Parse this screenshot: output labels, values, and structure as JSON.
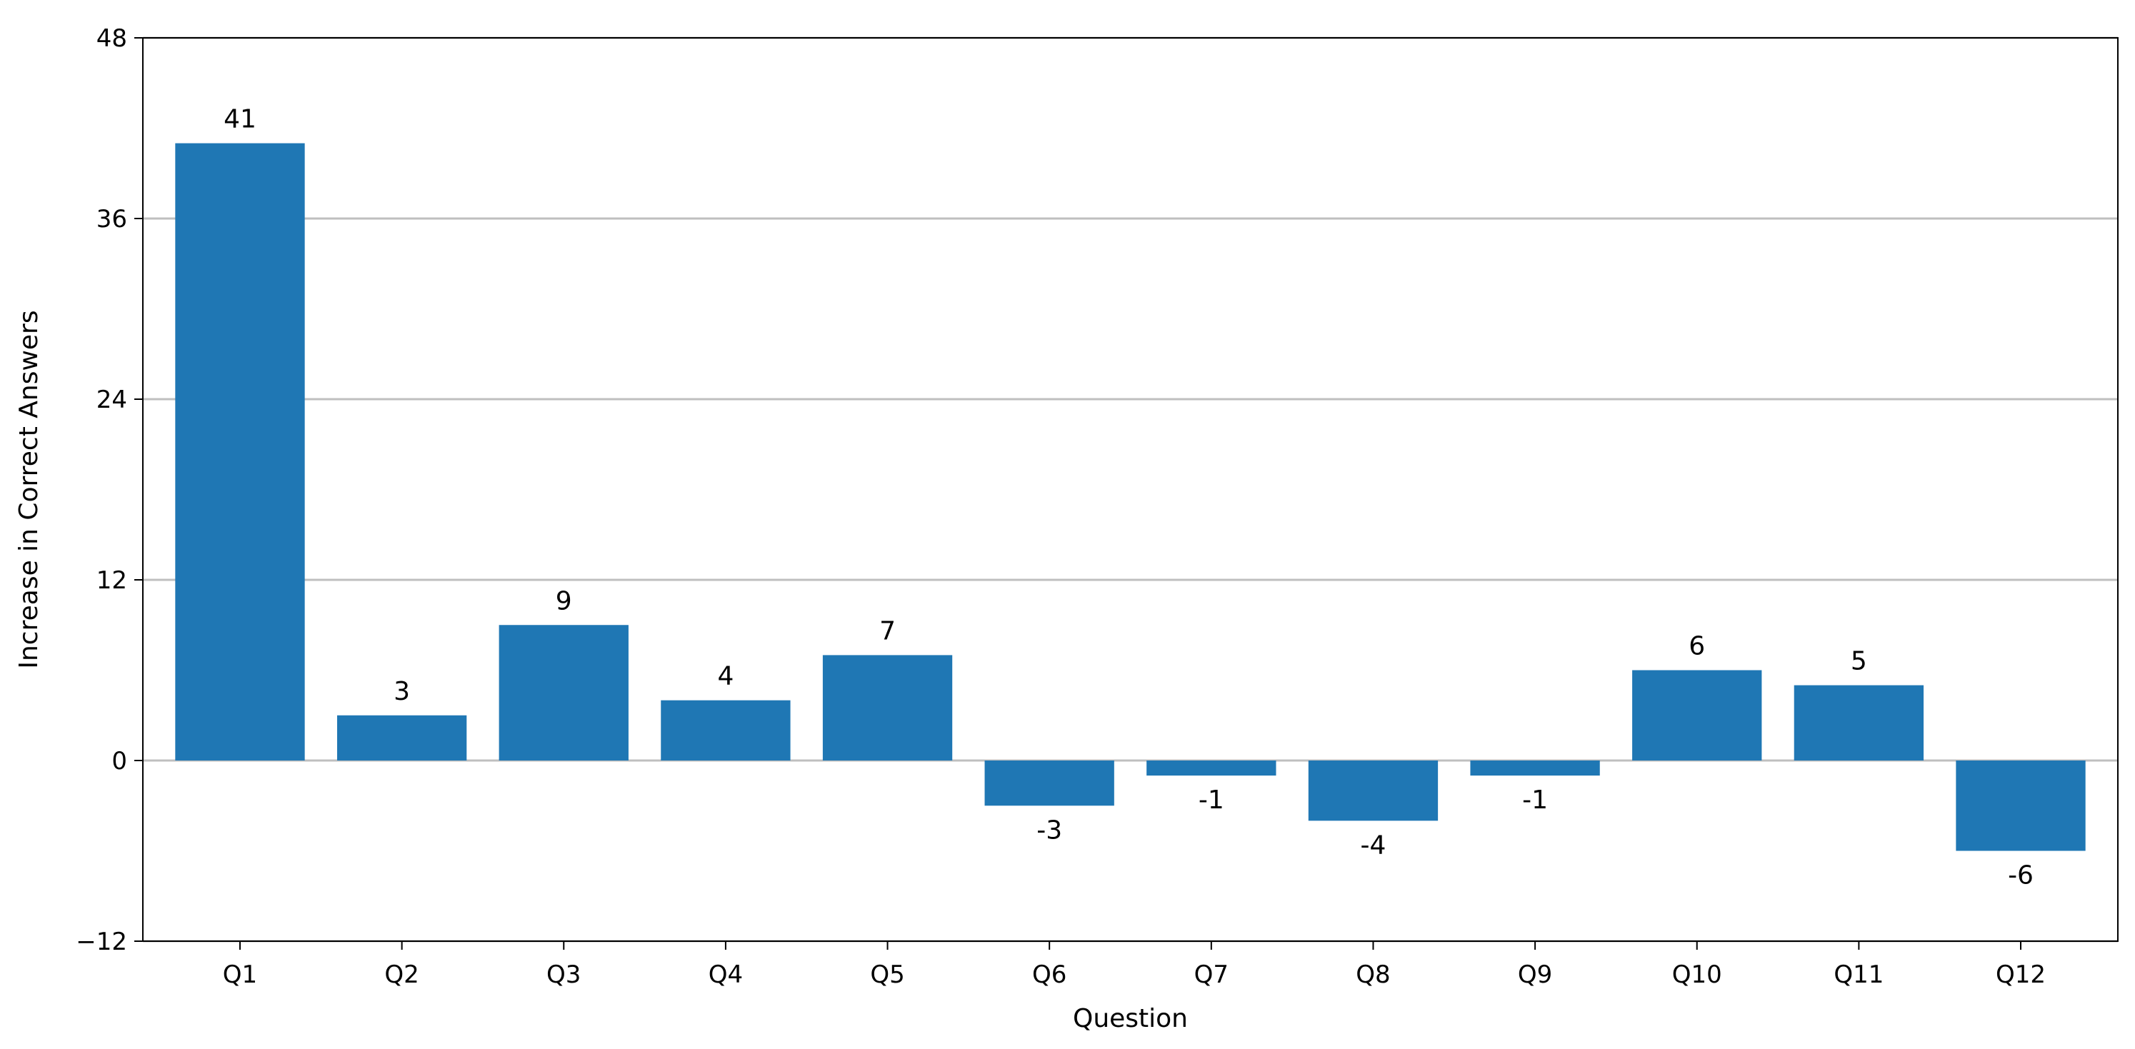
{
  "chart_data": {
    "type": "bar",
    "title": "",
    "xlabel": "Question",
    "ylabel": "Increase in Correct Answers",
    "categories": [
      "Q1",
      "Q2",
      "Q3",
      "Q4",
      "Q5",
      "Q6",
      "Q7",
      "Q8",
      "Q9",
      "Q10",
      "Q11",
      "Q12"
    ],
    "values": [
      41,
      3,
      9,
      4,
      7,
      -3,
      -1,
      -4,
      -1,
      6,
      5,
      -6
    ],
    "data_labels": [
      "41",
      "3",
      "9",
      "4",
      "7",
      "-3",
      "-1",
      "-4",
      "-1",
      "6",
      "5",
      "-6"
    ],
    "ylim": [
      -12,
      48
    ],
    "yticks": [
      -12,
      0,
      12,
      24,
      36,
      48
    ],
    "ytick_labels": [
      "−12",
      "0",
      "12",
      "24",
      "36",
      "48"
    ],
    "grid": "horizontal",
    "legend": "none",
    "colors": {
      "bar": "#1f77b4",
      "grid": "#bfbfbf",
      "axis": "#000000"
    }
  }
}
